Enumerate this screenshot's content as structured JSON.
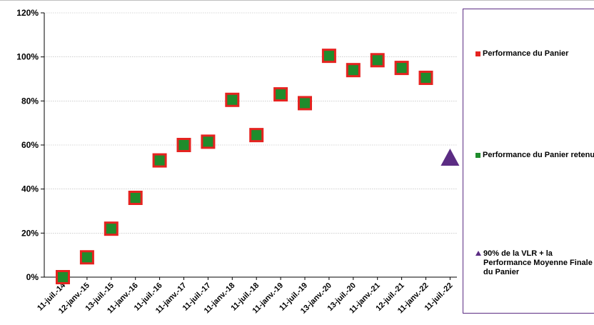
{
  "chart_data": {
    "type": "scatter",
    "ylim": [
      0,
      1.2
    ],
    "y_ticks": [
      "0%",
      "20%",
      "40%",
      "60%",
      "80%",
      "100%",
      "120%"
    ],
    "y_tick_values": [
      0,
      0.2,
      0.4,
      0.6,
      0.8,
      1.0,
      1.2
    ],
    "x": [
      "11-juil.-14",
      "12-janv.-15",
      "13-juil.-15",
      "11-janv.-16",
      "11-juil.-16",
      "11-janv.-17",
      "11-juil.-17",
      "11-janv.-18",
      "11-juil.-18",
      "11-janv.-19",
      "11-juil.-19",
      "13-janv.-20",
      "13-juil.-20",
      "11-janv.-21",
      "12-juil.-21",
      "11-janv.-22",
      "11-juil.-22"
    ],
    "grid": true,
    "legend_position": "right",
    "series": [
      {
        "name": "Performance du Panier",
        "marker": "square",
        "color": "#e52320",
        "values": [
          0.0,
          0.09,
          0.22,
          0.36,
          0.53,
          0.6,
          0.615,
          0.805,
          0.645,
          0.83,
          0.79,
          1.005,
          0.94,
          0.985,
          0.95,
          0.905
        ]
      },
      {
        "name": "Performance du Panier retenue",
        "marker": "square",
        "color": "#1f8c2c",
        "values": [
          0.0,
          0.09,
          0.22,
          0.36,
          0.53,
          0.6,
          0.615,
          0.805,
          0.645,
          0.83,
          0.79,
          1.005,
          0.94,
          0.985,
          0.95,
          0.905
        ]
      },
      {
        "name": "90% de la VLR + la Performance Moyenne Finale du Panier",
        "marker": "triangle",
        "color": "#5b2c83",
        "x_index": 16,
        "value": 0.535
      }
    ]
  },
  "legend": {
    "items": [
      {
        "label": "Performance du Panier"
      },
      {
        "label": "Performance du Panier retenue"
      },
      {
        "label": "90% de la VLR + la Performance Moyenne Finale du Panier"
      }
    ]
  }
}
